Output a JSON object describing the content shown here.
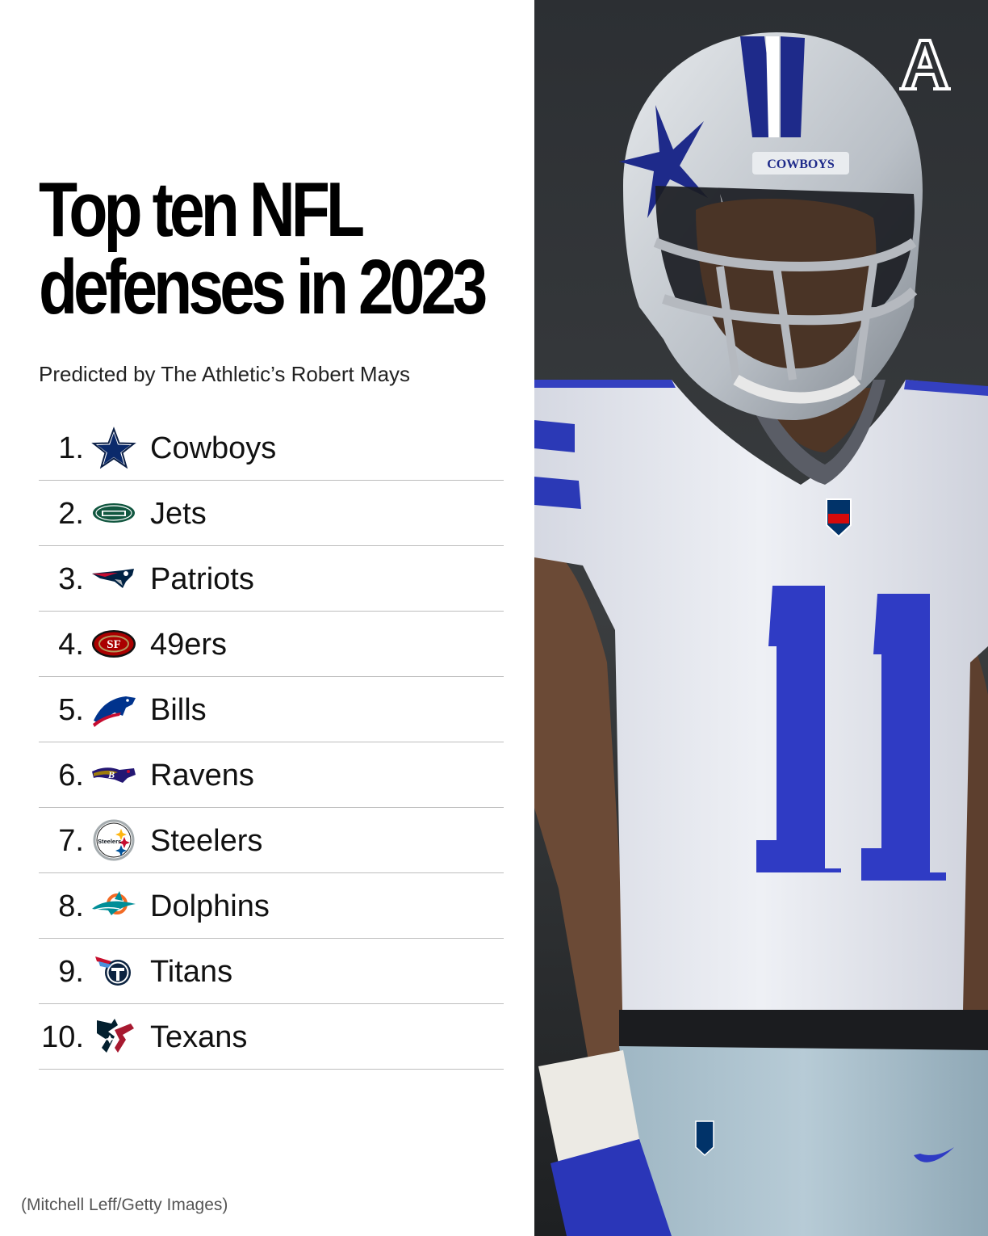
{
  "header": {
    "title_line1": "Top ten NFL",
    "title_line2": "defenses in 2023",
    "subtitle": "Predicted by The Athletic’s Robert Mays"
  },
  "rankings": [
    {
      "rank": "1.",
      "team": "Cowboys",
      "logo": "cowboys-star-icon",
      "color": "#041E42"
    },
    {
      "rank": "2.",
      "team": "Jets",
      "logo": "jets-logo-icon",
      "color": "#125740"
    },
    {
      "rank": "3.",
      "team": "Patriots",
      "logo": "patriots-logo-icon",
      "color": "#002244"
    },
    {
      "rank": "4.",
      "team": "49ers",
      "logo": "49ers-logo-icon",
      "color": "#AA0000"
    },
    {
      "rank": "5.",
      "team": "Bills",
      "logo": "bills-logo-icon",
      "color": "#00338D"
    },
    {
      "rank": "6.",
      "team": "Ravens",
      "logo": "ravens-logo-icon",
      "color": "#241773"
    },
    {
      "rank": "7.",
      "team": "Steelers",
      "logo": "steelers-logo-icon",
      "color": "#FFB612"
    },
    {
      "rank": "8.",
      "team": "Dolphins",
      "logo": "dolphins-logo-icon",
      "color": "#008E97"
    },
    {
      "rank": "9.",
      "team": "Titans",
      "logo": "titans-logo-icon",
      "color": "#4B92DB"
    },
    {
      "rank": "10.",
      "team": "Texans",
      "logo": "texans-logo-icon",
      "color": "#03202F"
    }
  ],
  "photo": {
    "helmet_text": "COWBOYS",
    "jersey_number": "11",
    "credit": "(Mitchell Leff/Getty Images)"
  },
  "brand": {
    "mark": "A",
    "icon": "the-athletic-logo-icon"
  }
}
